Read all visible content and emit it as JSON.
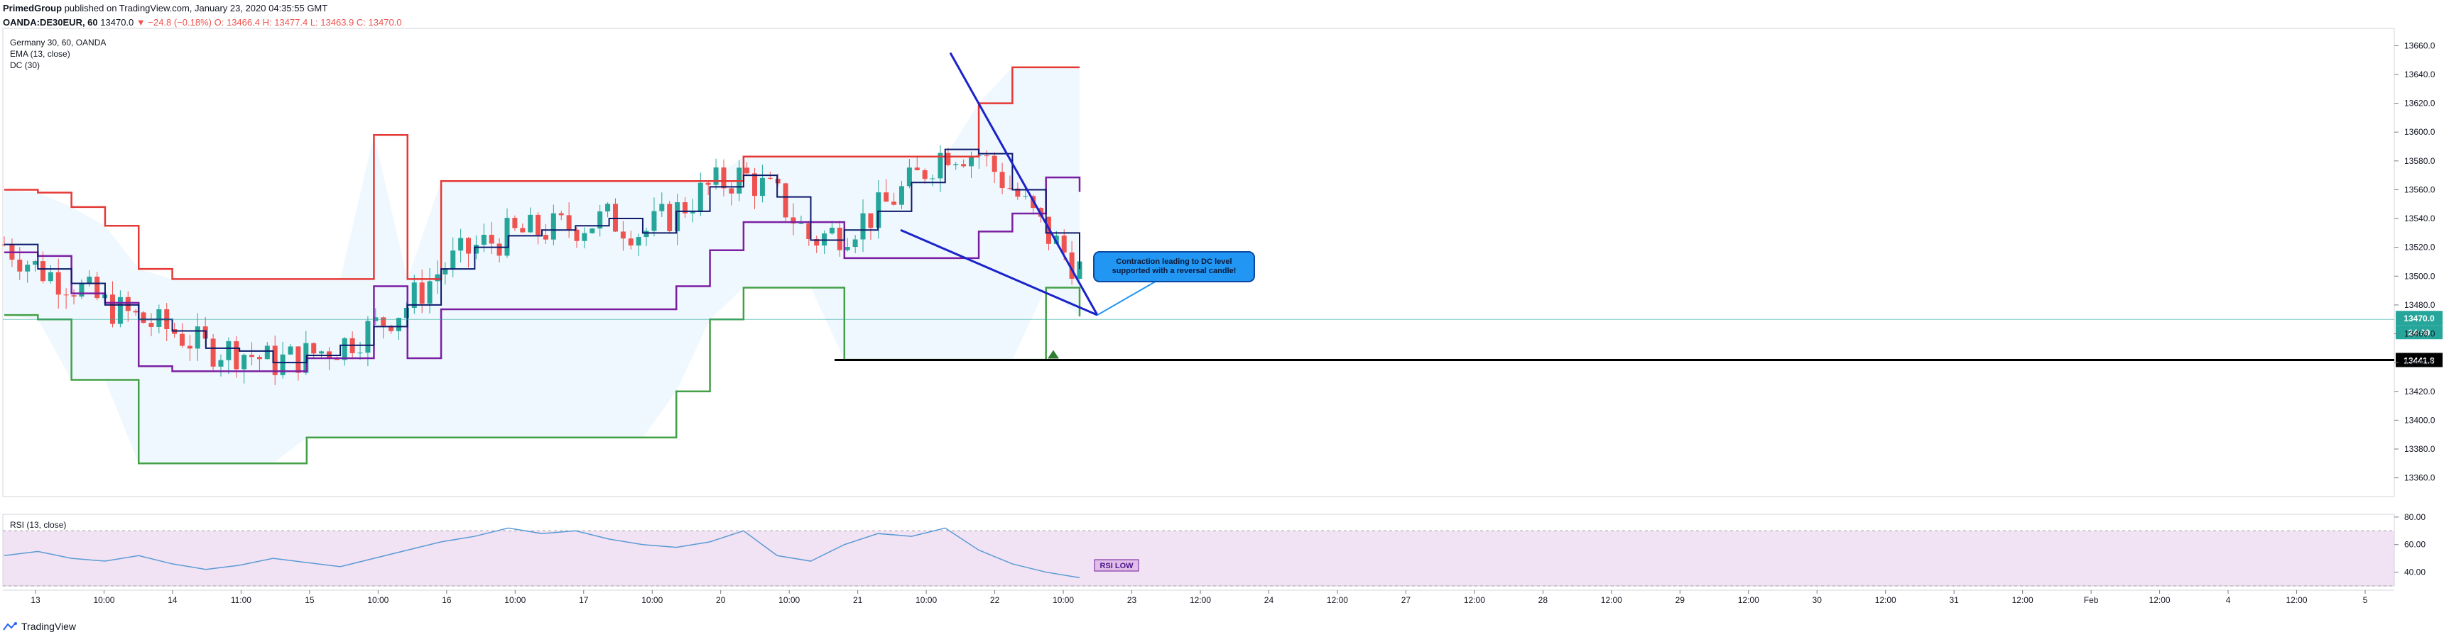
{
  "header": {
    "author": "PrimedGroup",
    "published": "published on TradingView.com, January 23, 2020 04:35:55 GMT",
    "symbol": "OANDA:DE30EUR, 60",
    "last": "13470.0",
    "change": "▼ −24.8 (−0.18%)",
    "open": "O: 13466.4",
    "high": "H: 13477.4",
    "low": "L: 13463.9",
    "close": "C: 13470.0"
  },
  "indicators": {
    "title": "Germany 30, 60, OANDA",
    "ema": "EMA (13, close)",
    "dc": "DC (30)",
    "rsi": "RSI (13, close)"
  },
  "annotations": {
    "callout": [
      "Contraction leading to DC level",
      "supported with a reversal candle!"
    ],
    "rsi_label": "RSI LOW"
  },
  "price_tags": {
    "current": "13470.0",
    "countdown": "24:09",
    "level": "13441.8"
  },
  "footer": {
    "brand": "TradingView"
  },
  "colors": {
    "up": "#26a69a",
    "down": "#ef5350",
    "dc_upper": "#e53935",
    "dc_lower": "#43a047",
    "dc_mid": "#7b1fa2",
    "ema": "#0d1a6b",
    "trendline": "#1a23c9",
    "rsi": "#5b9bd5"
  },
  "chart_data": [
    {
      "type": "line",
      "title": "Germany 30, 60, OANDA",
      "y_axis_ticks": [
        13360.0,
        13380.0,
        13400.0,
        13420.0,
        13440.0,
        13460.0,
        13480.0,
        13500.0,
        13520.0,
        13540.0,
        13560.0,
        13580.0,
        13600.0,
        13620.0,
        13640.0,
        13660.0
      ],
      "ylim": [
        13347,
        13672
      ],
      "x_axis_ticks": [
        "13",
        "10:00",
        "14",
        "11:00",
        "15",
        "10:00",
        "16",
        "10:00",
        "17",
        "10:00",
        "20",
        "10:00",
        "21",
        "10:00",
        "22",
        "10:00",
        "23",
        "12:00",
        "24",
        "12:00",
        "27",
        "12:00",
        "28",
        "12:00",
        "29",
        "12:00",
        "30",
        "12:00",
        "31",
        "12:00",
        "Feb",
        "12:00",
        "4",
        "12:00",
        "5"
      ],
      "series": [
        {
          "name": "DC (30)",
          "values": [
            13560,
            13558,
            13548,
            13535,
            13505,
            13498,
            13498,
            13498,
            13498,
            13498,
            13498,
            13598,
            13498,
            13566,
            13566,
            13566,
            13566,
            13566,
            13566,
            13566,
            13566,
            13566,
            13583,
            13583,
            13583,
            13583,
            13583,
            13583,
            13583,
            13620,
            13645,
            13645,
            13645
          ]
        },
        {
          "name": "DC (30)",
          "values": [
            13473,
            13470,
            13428,
            13428,
            13370,
            13370,
            13370,
            13370,
            13370,
            13388,
            13388,
            13388,
            13388,
            13388,
            13388,
            13388,
            13388,
            13388,
            13388,
            13388,
            13420,
            13470,
            13492,
            13492,
            13492,
            13442,
            13442,
            13442,
            13442,
            13442,
            13442,
            13492,
            13472
          ]
        },
        {
          "name": "EMA (13, close)",
          "values": [
            13522,
            13505,
            13495,
            13480,
            13470,
            13462,
            13450,
            13448,
            13440,
            13445,
            13452,
            13465,
            13480,
            13505,
            13520,
            13528,
            13532,
            13535,
            13540,
            13530,
            13545,
            13562,
            13570,
            13555,
            13525,
            13532,
            13545,
            13565,
            13588,
            13585,
            13560,
            13530,
            13505
          ]
        }
      ],
      "annotations": {
        "support_level": 13441.8,
        "current_price": 13470.0,
        "countdown": "24:09",
        "callout": "Contraction leading to DC level supported with a reversal candle!"
      }
    },
    {
      "type": "line",
      "title": "RSI (13, close)",
      "y_axis_ticks": [
        40.0,
        60.0,
        80.0
      ],
      "ylim": [
        30,
        82
      ],
      "series": [
        {
          "name": "RSI (13, close)",
          "values": [
            52,
            55,
            50,
            48,
            52,
            46,
            42,
            45,
            50,
            47,
            44,
            50,
            56,
            62,
            66,
            72,
            68,
            70,
            64,
            60,
            58,
            62,
            70,
            52,
            48,
            60,
            68,
            66,
            72,
            56,
            46,
            40,
            36
          ]
        }
      ],
      "annotations": {
        "label": "RSI LOW"
      }
    }
  ]
}
